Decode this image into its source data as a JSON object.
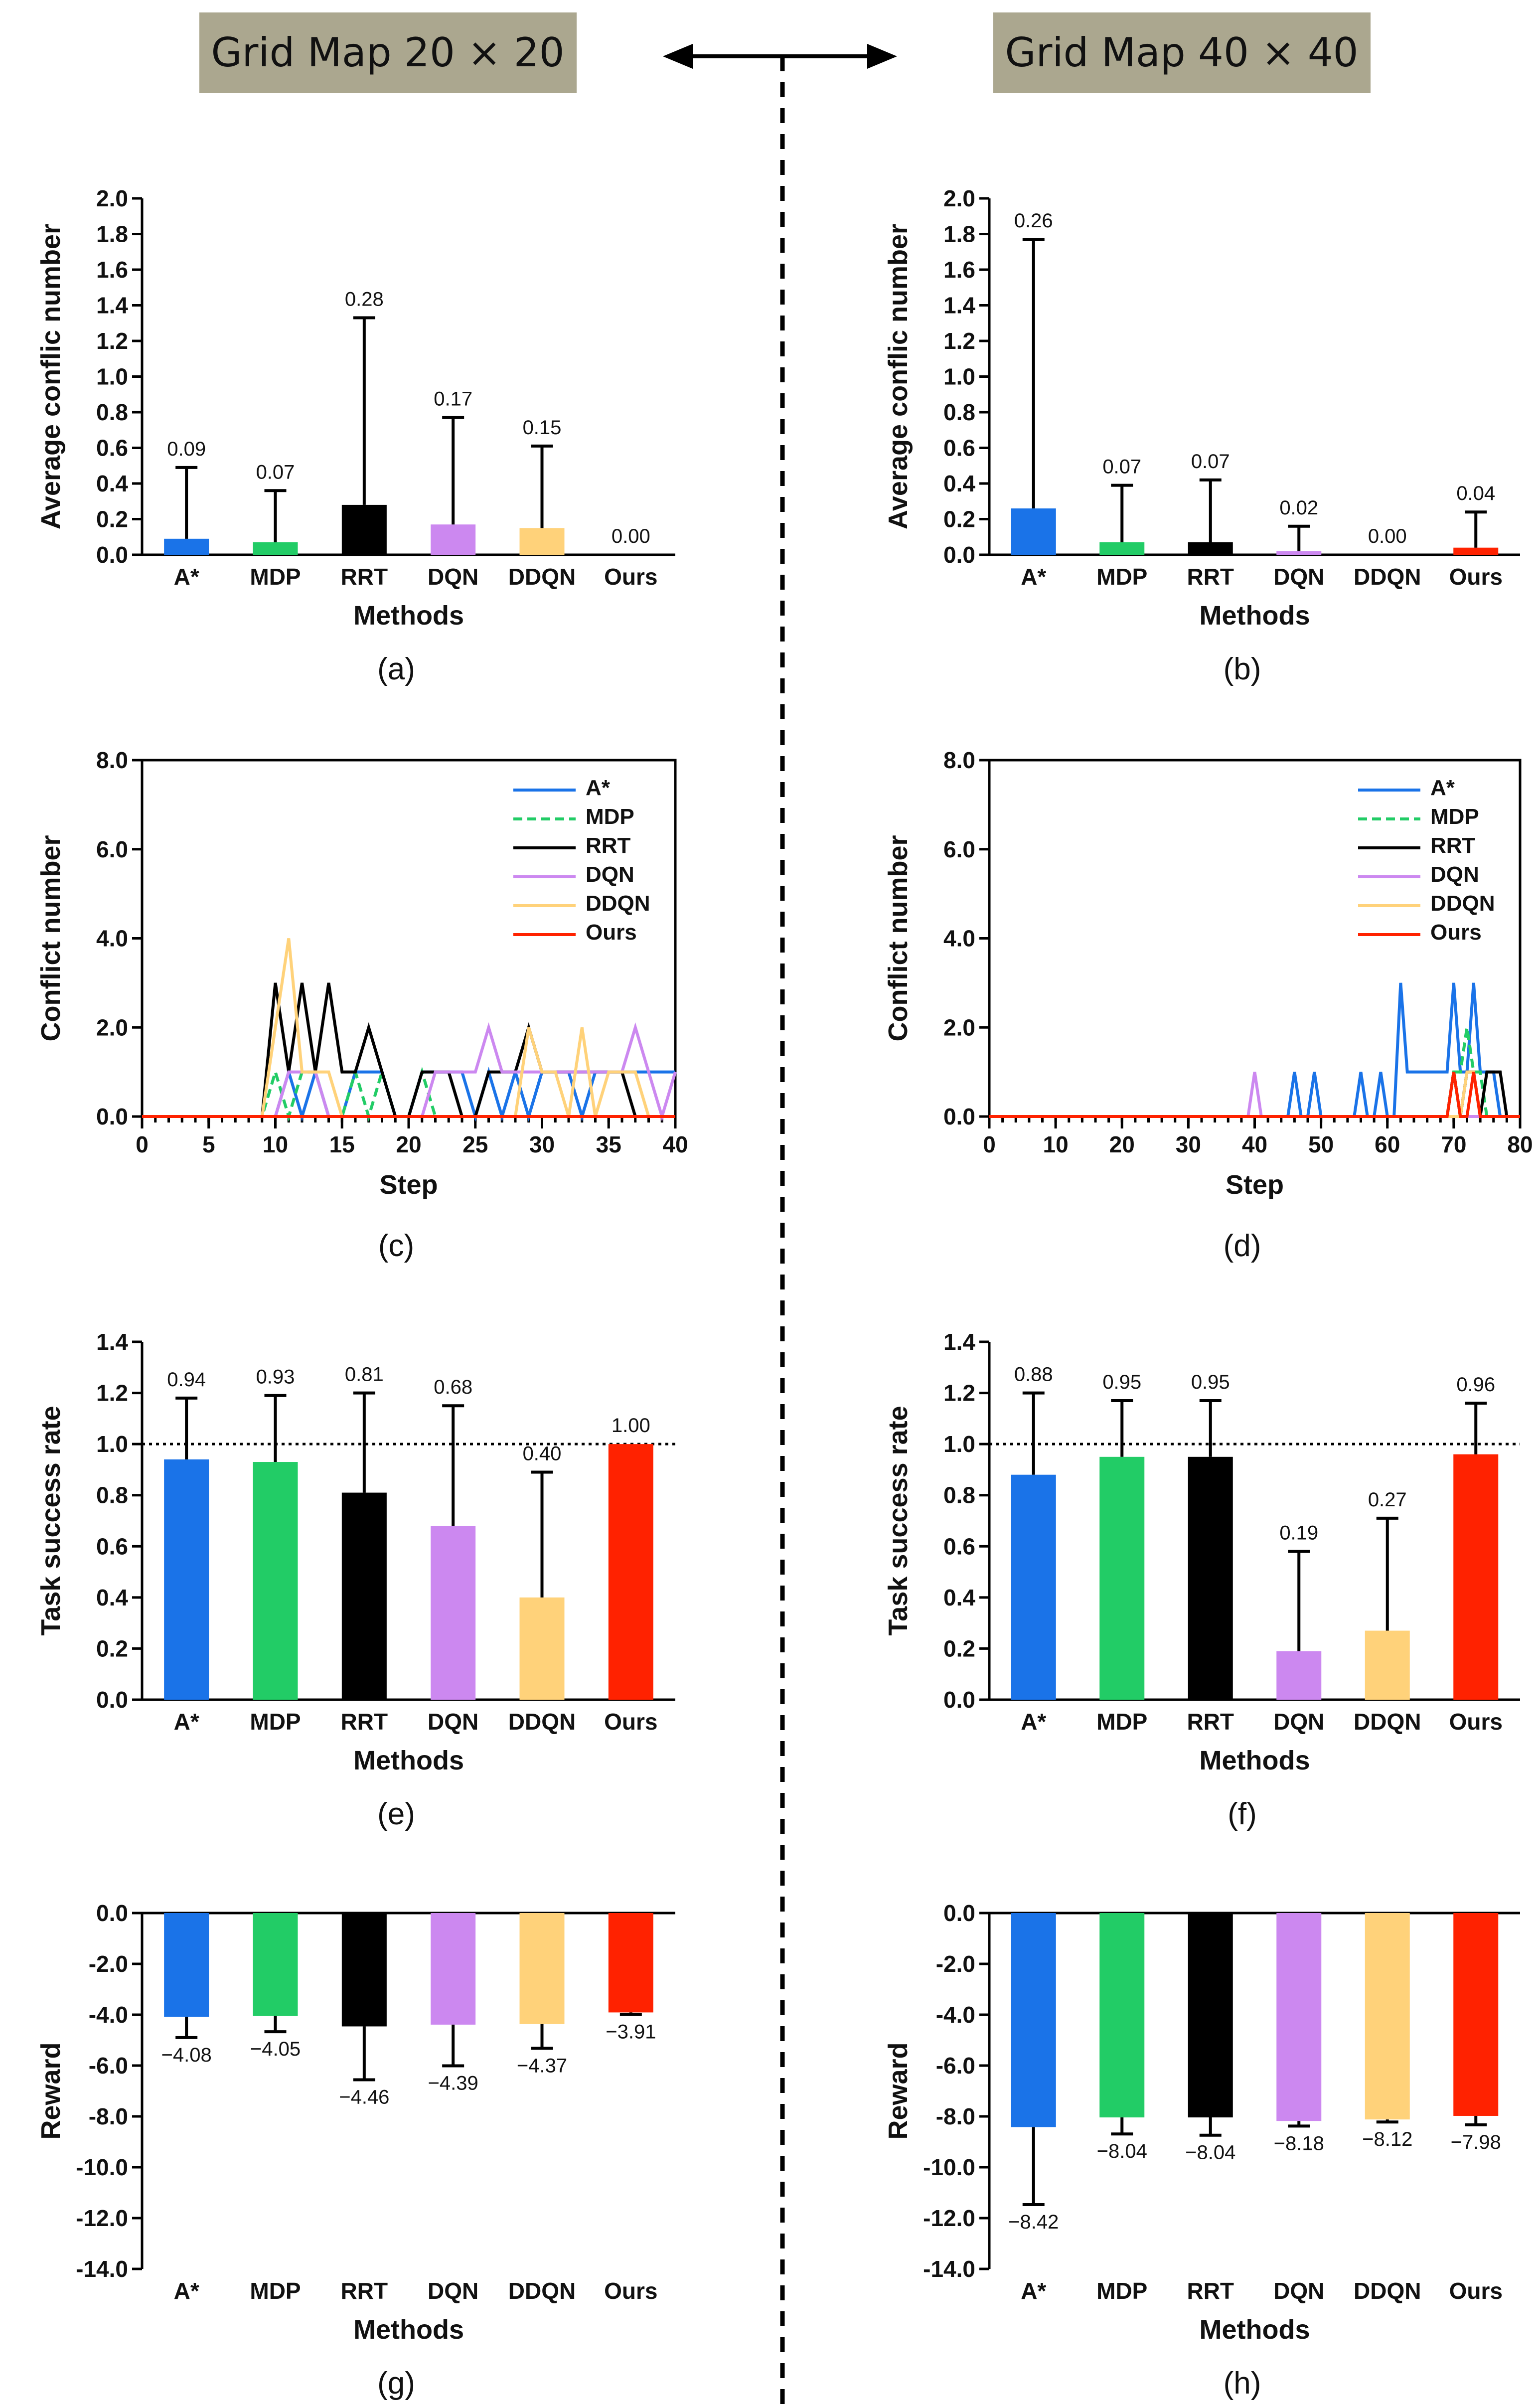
{
  "header": {
    "left_title": "Grid Map 20 × 20",
    "right_title": "Grid Map 40 × 40"
  },
  "colors": {
    "A*": "#1a73e8",
    "MDP": "#22cc66",
    "RRT": "#000000",
    "DQN": "#cc88f0",
    "DDQN": "#ffd27a",
    "Ours": "#ff2200",
    "header_box": "#aba78f"
  },
  "chart_data": [
    {
      "id": "a",
      "type": "bar",
      "panel_label": "(a)",
      "title": "",
      "xlabel": "Methods",
      "ylabel": "Average conflic number",
      "categories": [
        "A*",
        "MDP",
        "RRT",
        "DQN",
        "DDQN",
        "Ours"
      ],
      "values": [
        0.09,
        0.07,
        0.28,
        0.17,
        0.15,
        0.0
      ],
      "errors": [
        0.4,
        0.29,
        1.05,
        0.6,
        0.46,
        0.0
      ],
      "value_labels": [
        "0.09",
        "0.07",
        "0.28",
        "0.17",
        "0.15",
        "0.00"
      ],
      "ylim": [
        0,
        2.0
      ],
      "yticks": [
        "0.0",
        "0.2",
        "0.4",
        "0.6",
        "0.8",
        "1.0",
        "1.2",
        "1.4",
        "1.6",
        "1.8",
        "2.0"
      ],
      "ref_line": null
    },
    {
      "id": "b",
      "type": "bar",
      "panel_label": "(b)",
      "title": "",
      "xlabel": "Methods",
      "ylabel": "Average conflic number",
      "categories": [
        "A*",
        "MDP",
        "RRT",
        "DQN",
        "DDQN",
        "Ours"
      ],
      "values": [
        0.26,
        0.07,
        0.07,
        0.02,
        0.0,
        0.04
      ],
      "errors": [
        1.51,
        0.32,
        0.35,
        0.14,
        0.0,
        0.2
      ],
      "value_labels": [
        "0.26",
        "0.07",
        "0.07",
        "0.02",
        "0.00",
        "0.04"
      ],
      "ylim": [
        0,
        2.0
      ],
      "yticks": [
        "0.0",
        "0.2",
        "0.4",
        "0.6",
        "0.8",
        "1.0",
        "1.2",
        "1.4",
        "1.6",
        "1.8",
        "2.0"
      ],
      "ref_line": null
    },
    {
      "id": "c",
      "type": "line",
      "panel_label": "(c)",
      "title": "",
      "xlabel": "Step",
      "ylabel": "Conflict number",
      "xlim": [
        0,
        40
      ],
      "ylim": [
        0,
        8
      ],
      "xticks": [
        0,
        5,
        10,
        15,
        20,
        25,
        30,
        35,
        40
      ],
      "xtick_labels": [
        "0",
        "5",
        "10",
        "15",
        "20",
        "25",
        "30",
        "35",
        "40"
      ],
      "yticks": [
        0,
        2,
        4,
        6,
        8
      ],
      "ytick_labels": [
        "0.0",
        "2.0",
        "4.0",
        "6.0",
        "8.0"
      ],
      "legend": [
        "A*",
        "MDP",
        "RRT",
        "DQN",
        "DDQN",
        "Ours"
      ],
      "series": [
        {
          "name": "A*",
          "x": [
            0,
            10,
            11,
            12,
            13,
            14,
            15,
            16,
            17,
            18,
            19,
            20,
            21,
            22,
            23,
            24,
            25,
            26,
            27,
            28,
            29,
            30,
            31,
            32,
            33,
            34,
            35,
            36,
            37,
            38,
            39,
            40
          ],
          "y": [
            0,
            0,
            1,
            0,
            1,
            0,
            0,
            1,
            1,
            1,
            0,
            0,
            1,
            1,
            1,
            1,
            0,
            1,
            0,
            1,
            0,
            1,
            1,
            1,
            0,
            1,
            1,
            1,
            1,
            1,
            1,
            1
          ]
        },
        {
          "name": "MDP",
          "x": [
            0,
            9,
            10,
            11,
            12,
            13,
            14,
            15,
            16,
            17,
            18,
            19,
            20,
            21,
            22,
            23,
            24,
            25,
            26,
            27,
            28,
            29,
            30,
            31,
            32,
            33,
            34,
            35,
            36,
            37,
            38,
            39,
            40
          ],
          "y": [
            0,
            0,
            1,
            0,
            1,
            1,
            0,
            0,
            1,
            0,
            1,
            0,
            0,
            1,
            0,
            0,
            0,
            0,
            0,
            0,
            0,
            0,
            0,
            0,
            0,
            0,
            0,
            0,
            0,
            0,
            0,
            0,
            0
          ]
        },
        {
          "name": "RRT",
          "x": [
            0,
            9,
            10,
            11,
            12,
            13,
            14,
            15,
            16,
            17,
            18,
            19,
            20,
            21,
            22,
            23,
            24,
            25,
            26,
            27,
            28,
            29,
            30,
            31,
            32,
            33,
            34,
            35,
            36,
            37,
            38,
            39,
            40
          ],
          "y": [
            0,
            0,
            3,
            1,
            3,
            1,
            3,
            1,
            1,
            2,
            1,
            0,
            0,
            1,
            1,
            1,
            0,
            0,
            1,
            1,
            1,
            2,
            1,
            1,
            1,
            1,
            1,
            1,
            1,
            0,
            0,
            0,
            0
          ]
        },
        {
          "name": "DQN",
          "x": [
            0,
            9,
            10,
            11,
            12,
            13,
            14,
            15,
            16,
            17,
            18,
            19,
            20,
            21,
            22,
            23,
            24,
            25,
            26,
            27,
            28,
            29,
            30,
            31,
            32,
            33,
            34,
            35,
            36,
            37,
            38,
            39,
            40
          ],
          "y": [
            0,
            0,
            0,
            1,
            1,
            1,
            0,
            0,
            0,
            0,
            0,
            0,
            0,
            0,
            1,
            1,
            1,
            1,
            2,
            1,
            1,
            1,
            1,
            1,
            1,
            1,
            1,
            1,
            1,
            2,
            1,
            0,
            1
          ]
        },
        {
          "name": "DDQN",
          "x": [
            0,
            9,
            10,
            11,
            12,
            13,
            14,
            15,
            16,
            17,
            18,
            19,
            20,
            21,
            22,
            23,
            24,
            25,
            26,
            27,
            28,
            29,
            30,
            31,
            32,
            33,
            34,
            35,
            36,
            37,
            38,
            39,
            40
          ],
          "y": [
            0,
            0,
            2,
            4,
            1,
            1,
            1,
            0,
            0,
            0,
            0,
            0,
            0,
            0,
            0,
            0,
            0,
            0,
            0,
            0,
            0,
            2,
            1,
            1,
            0,
            2,
            0,
            1,
            1,
            1,
            0,
            0,
            0
          ]
        },
        {
          "name": "Ours",
          "x": [
            0,
            40
          ],
          "y": [
            0,
            0
          ]
        }
      ]
    },
    {
      "id": "d",
      "type": "line",
      "panel_label": "(d)",
      "title": "",
      "xlabel": "Step",
      "ylabel": "Conflict number",
      "xlim": [
        0,
        80
      ],
      "ylim": [
        0,
        8
      ],
      "xticks": [
        0,
        10,
        20,
        30,
        40,
        50,
        60,
        70,
        80
      ],
      "xtick_labels": [
        "0",
        "10",
        "20",
        "30",
        "40",
        "50",
        "60",
        "70",
        "80"
      ],
      "yticks": [
        0,
        2,
        4,
        6,
        8
      ],
      "ytick_labels": [
        "0.0",
        "2.0",
        "4.0",
        "6.0",
        "8.0"
      ],
      "legend": [
        "A*",
        "MDP",
        "RRT",
        "DQN",
        "DDQN",
        "Ours"
      ],
      "series": [
        {
          "name": "A*",
          "x": [
            0,
            45,
            46,
            47,
            48,
            49,
            50,
            55,
            56,
            57,
            58,
            59,
            60,
            61,
            62,
            63,
            64,
            65,
            66,
            67,
            68,
            69,
            70,
            71,
            72,
            73,
            74,
            75,
            76,
            77,
            78,
            80
          ],
          "y": [
            0,
            0,
            1,
            0,
            0,
            1,
            0,
            0,
            1,
            0,
            0,
            1,
            0,
            0,
            3,
            1,
            1,
            1,
            1,
            1,
            1,
            1,
            3,
            1,
            1,
            3,
            1,
            1,
            1,
            0,
            0,
            0
          ]
        },
        {
          "name": "MDP",
          "x": [
            0,
            68,
            69,
            70,
            71,
            72,
            73,
            74,
            75,
            80
          ],
          "y": [
            0,
            0,
            0,
            1,
            1,
            2,
            1,
            1,
            0,
            0
          ]
        },
        {
          "name": "RRT",
          "x": [
            0,
            68,
            69,
            70,
            71,
            72,
            73,
            74,
            75,
            76,
            77,
            78,
            80
          ],
          "y": [
            0,
            0,
            0,
            1,
            0,
            1,
            1,
            0,
            1,
            1,
            1,
            0,
            0
          ]
        },
        {
          "name": "DQN",
          "x": [
            0,
            39,
            40,
            41,
            80
          ],
          "y": [
            0,
            0,
            1,
            0,
            0
          ]
        },
        {
          "name": "DDQN",
          "x": [
            0,
            70,
            71,
            72,
            73,
            74,
            75,
            80
          ],
          "y": [
            0,
            0,
            0,
            1,
            1,
            0,
            0,
            0
          ]
        },
        {
          "name": "Ours",
          "x": [
            0,
            68,
            69,
            70,
            71,
            72,
            73,
            74,
            80
          ],
          "y": [
            0,
            0,
            0,
            1,
            0,
            0,
            1,
            0,
            0
          ]
        }
      ]
    },
    {
      "id": "e",
      "type": "bar",
      "panel_label": "(e)",
      "title": "",
      "xlabel": "Methods",
      "ylabel": "Task success rate",
      "categories": [
        "A*",
        "MDP",
        "RRT",
        "DQN",
        "DDQN",
        "Ours"
      ],
      "values": [
        0.94,
        0.93,
        0.81,
        0.68,
        0.4,
        1.0
      ],
      "errors": [
        0.24,
        0.26,
        0.39,
        0.47,
        0.49,
        0.0
      ],
      "value_labels": [
        "0.94",
        "0.93",
        "0.81",
        "0.68",
        "0.40",
        "1.00"
      ],
      "ylim": [
        0,
        1.4
      ],
      "yticks": [
        "0.0",
        "0.2",
        "0.4",
        "0.6",
        "0.8",
        "1.0",
        "1.2",
        "1.4"
      ],
      "ref_line": 1.0
    },
    {
      "id": "f",
      "type": "bar",
      "panel_label": "(f)",
      "title": "",
      "xlabel": "Methods",
      "ylabel": "Task success rate",
      "categories": [
        "A*",
        "MDP",
        "RRT",
        "DQN",
        "DDQN",
        "Ours"
      ],
      "values": [
        0.88,
        0.95,
        0.95,
        0.19,
        0.27,
        0.96
      ],
      "errors": [
        0.32,
        0.22,
        0.22,
        0.39,
        0.44,
        0.2
      ],
      "value_labels": [
        "0.88",
        "0.95",
        "0.95",
        "0.19",
        "0.27",
        "0.96"
      ],
      "ylim": [
        0,
        1.4
      ],
      "yticks": [
        "0.0",
        "0.2",
        "0.4",
        "0.6",
        "0.8",
        "1.0",
        "1.2",
        "1.4"
      ],
      "ref_line": 1.0
    },
    {
      "id": "g",
      "type": "bar",
      "panel_label": "(g)",
      "title": "",
      "xlabel": "Methods",
      "ylabel": "Reward",
      "categories": [
        "A*",
        "MDP",
        "RRT",
        "DQN",
        "DDQN",
        "Ours"
      ],
      "values": [
        -4.08,
        -4.05,
        -4.46,
        -4.39,
        -4.37,
        -3.91
      ],
      "errors": [
        0.82,
        0.62,
        2.1,
        1.62,
        0.95,
        0.08
      ],
      "value_labels": [
        "−4.08",
        "−4.05",
        "−4.46",
        "−4.39",
        "−4.37",
        "−3.91"
      ],
      "ylim": [
        -14.0,
        0.0
      ],
      "yticks": [
        "0.0",
        "-2.0",
        "-4.0",
        "-6.0",
        "-8.0",
        "-10.0",
        "-12.0",
        "-14.0"
      ],
      "ref_line": null
    },
    {
      "id": "h",
      "type": "bar",
      "panel_label": "(h)",
      "title": "",
      "xlabel": "Methods",
      "ylabel": "Reward",
      "categories": [
        "A*",
        "MDP",
        "RRT",
        "DQN",
        "DDQN",
        "Ours"
      ],
      "values": [
        -8.42,
        -8.04,
        -8.04,
        -8.18,
        -8.12,
        -7.98
      ],
      "errors": [
        3.05,
        0.65,
        0.7,
        0.2,
        0.1,
        0.35
      ],
      "value_labels": [
        "−8.42",
        "−8.04",
        "−8.04",
        "−8.18",
        "−8.12",
        "−7.98"
      ],
      "ylim": [
        -14.0,
        0.0
      ],
      "yticks": [
        "0.0",
        "-2.0",
        "-4.0",
        "-6.0",
        "-8.0",
        "-10.0",
        "-12.0",
        "-14.0"
      ],
      "ref_line": null
    }
  ]
}
